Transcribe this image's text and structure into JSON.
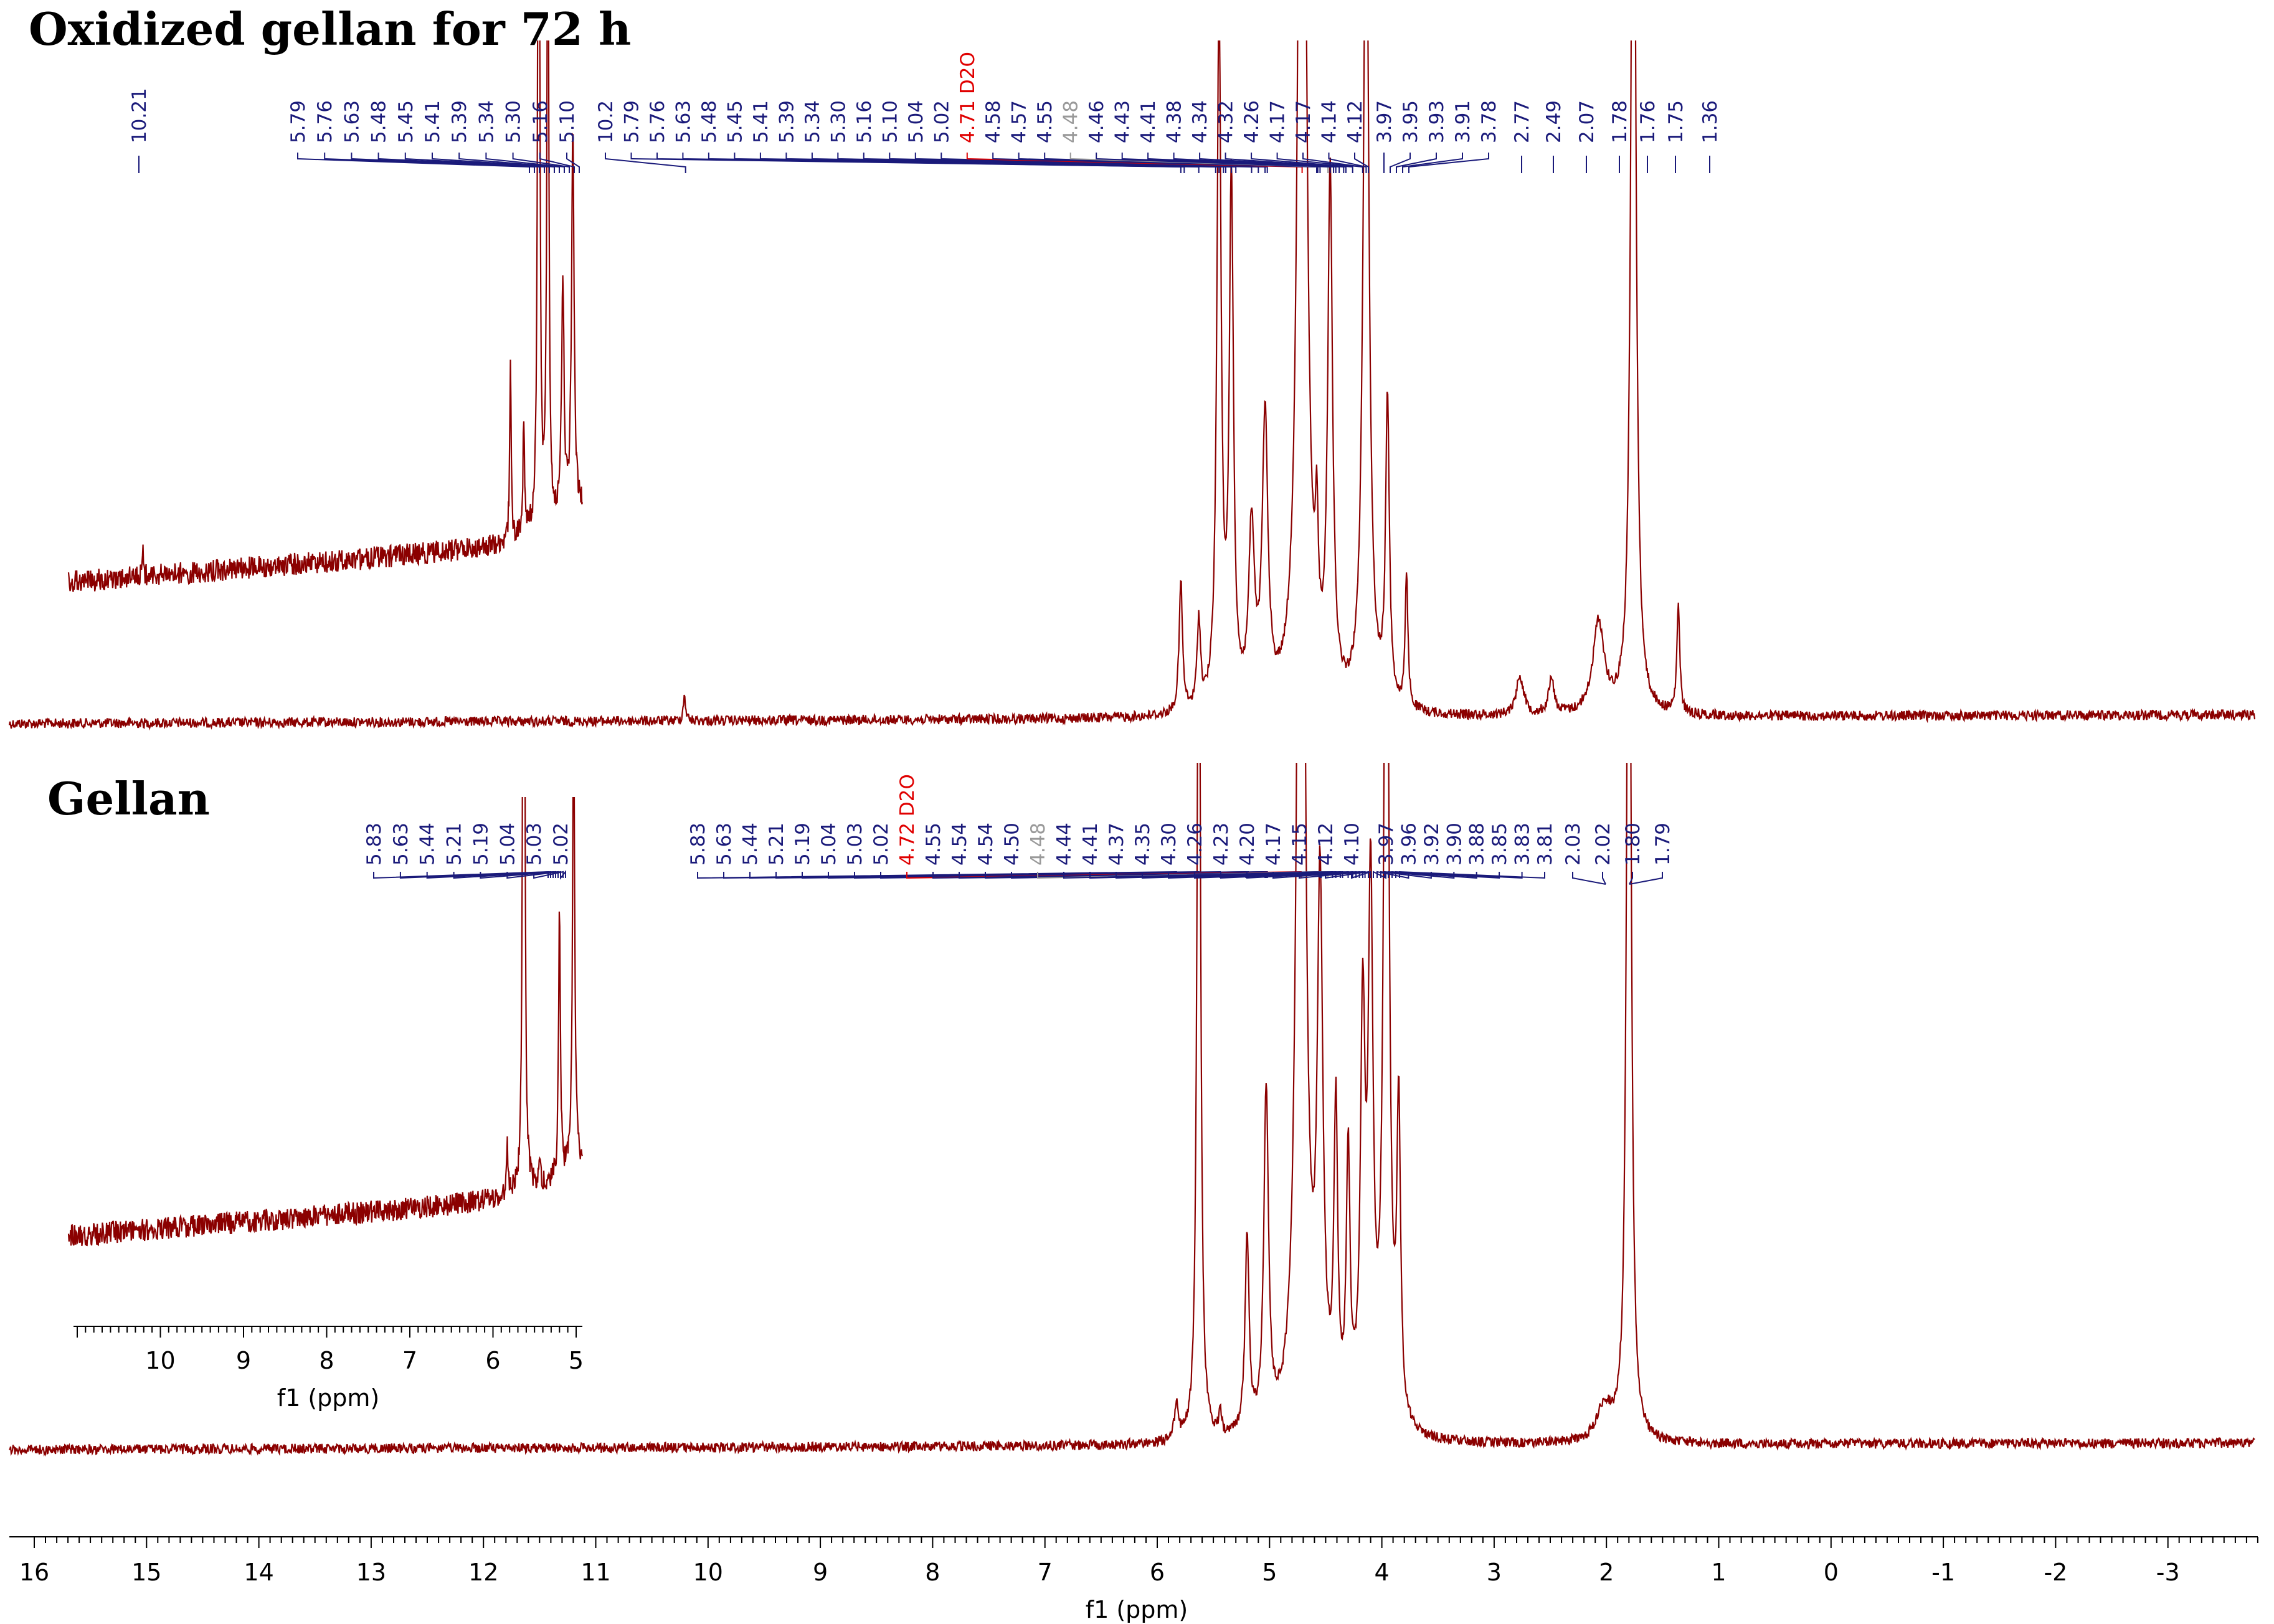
{
  "chart_data": {
    "type": "line",
    "axis": {
      "label": "f1 (ppm)",
      "ticks": [
        16,
        15,
        14,
        13,
        12,
        11,
        10,
        9,
        8,
        7,
        6,
        5,
        4,
        3,
        2,
        1,
        0,
        -1,
        -2,
        -3
      ],
      "xlim": [
        16.1,
        -3.8
      ]
    },
    "inset_axis": {
      "label": "f1 (ppm)",
      "ticks": [
        10,
        9,
        8,
        7,
        6,
        5
      ],
      "xlim": [
        11.0,
        5.0
      ]
    },
    "colors": {
      "spectrum": "#8b0000",
      "peaklabel": "#1a1a7a",
      "solvent": "#e00000",
      "faded": "#999999"
    },
    "panels": [
      {
        "title": "Oxidized gellan for 72 h",
        "inset_labels": [
          "5.79",
          "5.76",
          "5.63",
          "5.48",
          "5.45",
          "5.41",
          "5.39",
          "5.34",
          "5.30",
          "5.16",
          "5.10"
        ],
        "main_labels": [
          "10.2",
          "5.79",
          "5.76",
          "5.63",
          "5.48",
          "5.45",
          "5.41",
          "5.39",
          "5.34",
          "5.30",
          "5.16",
          "5.10",
          "5.04",
          "5.02",
          "4.71 D2O",
          "4.58",
          "4.57",
          "4.55",
          "4.48",
          "4.46",
          "4.43",
          "4.41",
          "4.38",
          "4.34",
          "4.32",
          "4.26",
          "4.17",
          "4.17",
          "4.14",
          "4.12"
        ],
        "right_labels": [
          "3.97",
          "3.95",
          "3.93",
          "3.91",
          "3.78"
        ],
        "single_labels": [
          "10.21",
          "2.77",
          "2.49",
          "2.07",
          "1.78",
          "1.76",
          "1.75",
          "1.36"
        ],
        "peaks": [
          {
            "ppm": 10.21,
            "height": 0.06,
            "width": 0.012
          },
          {
            "ppm": 5.79,
            "height": 0.3,
            "width": 0.018
          },
          {
            "ppm": 5.63,
            "height": 0.2,
            "width": 0.018
          },
          {
            "ppm": 5.45,
            "height": 1.6,
            "width": 0.022
          },
          {
            "ppm": 5.34,
            "height": 1.2,
            "width": 0.022
          },
          {
            "ppm": 5.16,
            "height": 0.4,
            "width": 0.03
          },
          {
            "ppm": 5.04,
            "height": 0.65,
            "width": 0.03
          },
          {
            "ppm": 4.71,
            "height": 3.5,
            "width": 0.035
          },
          {
            "ppm": 4.58,
            "height": 0.28,
            "width": 0.015
          },
          {
            "ppm": 4.46,
            "height": 1.2,
            "width": 0.025
          },
          {
            "ppm": 4.14,
            "height": 2.0,
            "width": 0.03
          },
          {
            "ppm": 3.95,
            "height": 0.7,
            "width": 0.02
          },
          {
            "ppm": 3.78,
            "height": 0.3,
            "width": 0.015
          },
          {
            "ppm": 2.77,
            "height": 0.09,
            "width": 0.04
          },
          {
            "ppm": 2.49,
            "height": 0.08,
            "width": 0.03
          },
          {
            "ppm": 2.07,
            "height": 0.21,
            "width": 0.06
          },
          {
            "ppm": 1.76,
            "height": 2.5,
            "width": 0.025
          },
          {
            "ppm": 1.36,
            "height": 0.25,
            "width": 0.015
          }
        ]
      },
      {
        "title": "Gellan",
        "inset_labels": [
          "5.83",
          "5.63",
          "5.44",
          "5.21",
          "5.19",
          "5.04",
          "5.03",
          "5.02"
        ],
        "main_labels": [
          "5.83",
          "5.63",
          "5.44",
          "5.21",
          "5.19",
          "5.04",
          "5.03",
          "5.02",
          "4.72 D2O",
          "4.55",
          "4.54",
          "4.54",
          "4.50",
          "4.48",
          "4.44",
          "4.41",
          "4.37",
          "4.35",
          "4.30",
          "4.26",
          "4.23",
          "4.20",
          "4.17",
          "4.15",
          "4.12",
          "4.10"
        ],
        "right_labels": [
          "3.97",
          "3.96",
          "3.92",
          "3.90",
          "3.88",
          "3.85",
          "3.83",
          "3.81"
        ],
        "single_labels": [
          "2.03",
          "2.02",
          "1.80",
          "1.79"
        ],
        "peaks": [
          {
            "ppm": 5.83,
            "height": 0.08,
            "width": 0.02
          },
          {
            "ppm": 5.63,
            "height": 2.2,
            "width": 0.018
          },
          {
            "ppm": 5.44,
            "height": 0.05,
            "width": 0.015
          },
          {
            "ppm": 5.2,
            "height": 0.45,
            "width": 0.022
          },
          {
            "ppm": 5.03,
            "height": 0.78,
            "width": 0.025
          },
          {
            "ppm": 4.72,
            "height": 3.5,
            "width": 0.035
          },
          {
            "ppm": 4.55,
            "height": 1.2,
            "width": 0.03
          },
          {
            "ppm": 4.41,
            "height": 0.7,
            "width": 0.02
          },
          {
            "ppm": 4.3,
            "height": 0.6,
            "width": 0.02
          },
          {
            "ppm": 4.17,
            "height": 0.9,
            "width": 0.025
          },
          {
            "ppm": 4.1,
            "height": 1.2,
            "width": 0.025
          },
          {
            "ppm": 3.96,
            "height": 2.5,
            "width": 0.025
          },
          {
            "ppm": 3.85,
            "height": 0.7,
            "width": 0.02
          },
          {
            "ppm": 2.02,
            "height": 0.08,
            "width": 0.08
          },
          {
            "ppm": 1.8,
            "height": 2.6,
            "width": 0.022
          }
        ]
      }
    ]
  }
}
